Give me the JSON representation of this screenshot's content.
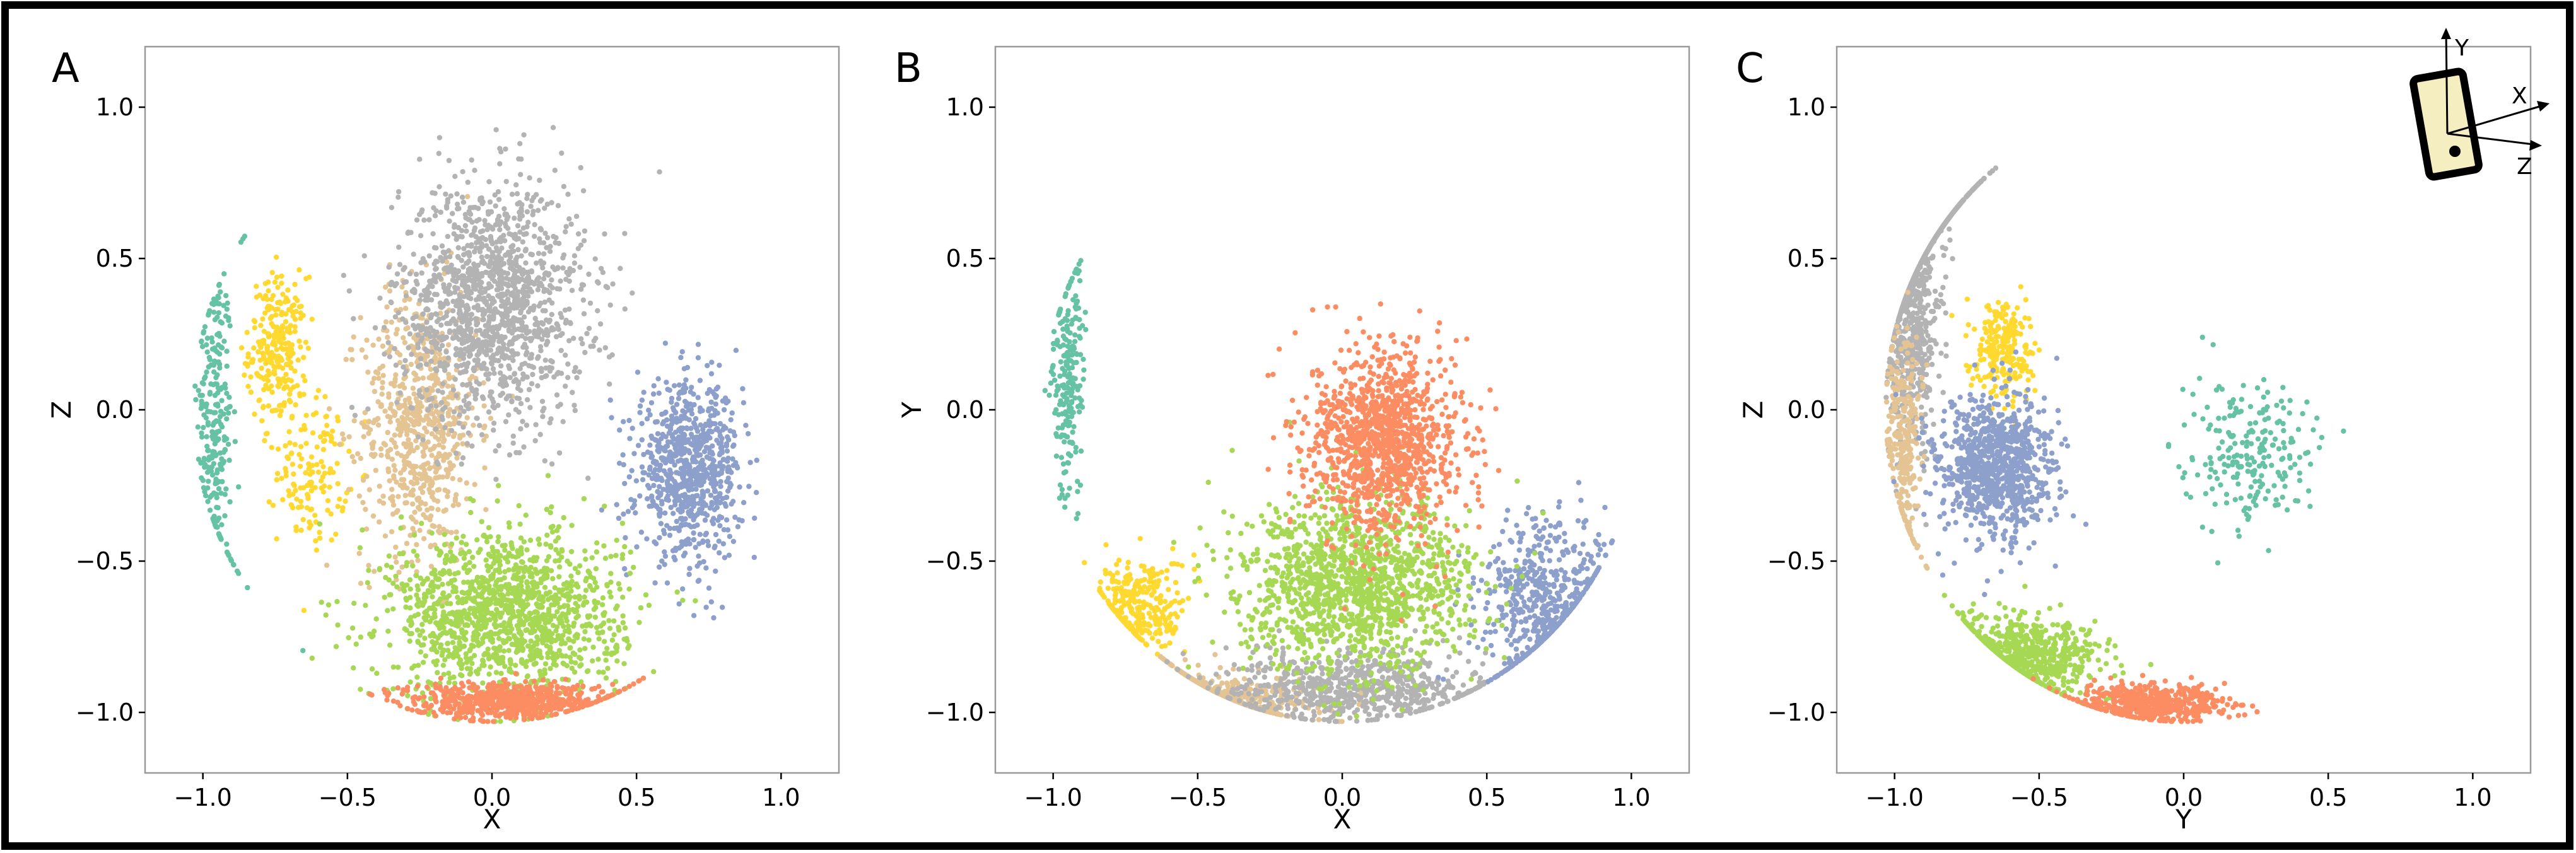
{
  "colors": {
    "teal": "#66c2a5",
    "orange": "#fc8d62",
    "blue": "#8da0cb",
    "green": "#a6d854",
    "yellow": "#ffd92f",
    "tan": "#e5c494",
    "gray": "#b3b3b3"
  },
  "inset": {
    "axis_labels": [
      "Y",
      "X",
      "Z"
    ],
    "icon": "phone-with-axes-icon"
  },
  "chart_data": [
    {
      "type": "scatter",
      "panel_label": "A",
      "xlabel": "X",
      "ylabel": "Z",
      "xlim": [
        -1.2,
        1.2
      ],
      "ylim": [
        -1.2,
        1.2
      ],
      "xticks": [
        -1.0,
        -0.5,
        0.0,
        0.5,
        1.0
      ],
      "yticks": [
        -1.0,
        -0.5,
        0.0,
        0.5,
        1.0
      ],
      "xtick_labels": [
        "−1.0",
        "−0.5",
        "0.0",
        "0.5",
        "1.0"
      ],
      "ytick_labels": [
        "−1.0",
        "−0.5",
        "0.0",
        "0.5",
        "1.0"
      ],
      "grid": false,
      "series": [
        {
          "color": "teal",
          "clusters": [
            {
              "center": [
                -0.96,
                -0.05
              ],
              "spread": [
                0.03,
                0.28
              ],
              "n": 260
            }
          ]
        },
        {
          "color": "yellow",
          "clusters": [
            {
              "center": [
                -0.74,
                0.2
              ],
              "spread": [
                0.05,
                0.12
              ],
              "n": 260
            },
            {
              "center": [
                -0.62,
                -0.2
              ],
              "spread": [
                0.06,
                0.12
              ],
              "n": 140
            }
          ]
        },
        {
          "color": "tan",
          "clusters": [
            {
              "center": [
                -0.25,
                -0.05
              ],
              "spread": [
                0.1,
                0.22
              ],
              "n": 700
            }
          ]
        },
        {
          "color": "gray",
          "clusters": [
            {
              "center": [
                0.0,
                0.35
              ],
              "spread": [
                0.16,
                0.2
              ],
              "n": 1400
            }
          ]
        },
        {
          "color": "blue",
          "clusters": [
            {
              "center": [
                0.68,
                -0.2
              ],
              "spread": [
                0.09,
                0.14
              ],
              "n": 800
            }
          ]
        },
        {
          "color": "green",
          "clusters": [
            {
              "center": [
                0.05,
                -0.68
              ],
              "spread": [
                0.2,
                0.14
              ],
              "n": 1400
            }
          ]
        },
        {
          "color": "orange",
          "clusters": [
            {
              "center": [
                0.05,
                -0.96
              ],
              "spread": [
                0.17,
                0.03
              ],
              "n": 650
            }
          ]
        }
      ]
    },
    {
      "type": "scatter",
      "panel_label": "B",
      "xlabel": "X",
      "ylabel": "Y",
      "xlim": [
        -1.2,
        1.2
      ],
      "ylim": [
        -1.2,
        1.2
      ],
      "xticks": [
        -1.0,
        -0.5,
        0.0,
        0.5,
        1.0
      ],
      "yticks": [
        -1.0,
        -0.5,
        0.0,
        0.5,
        1.0
      ],
      "xtick_labels": [
        "−1.0",
        "−0.5",
        "0.0",
        "0.5",
        "1.0"
      ],
      "ytick_labels": [
        "−1.0",
        "−0.5",
        "0.0",
        "0.5",
        "1.0"
      ],
      "grid": false,
      "series": [
        {
          "color": "teal",
          "clusters": [
            {
              "center": [
                -0.95,
                0.1
              ],
              "spread": [
                0.03,
                0.2
              ],
              "n": 220
            }
          ]
        },
        {
          "color": "yellow",
          "clusters": [
            {
              "center": [
                -0.7,
                -0.65
              ],
              "spread": [
                0.08,
                0.08
              ],
              "n": 300
            }
          ]
        },
        {
          "color": "tan",
          "clusters": [
            {
              "center": [
                -0.38,
                -0.96
              ],
              "spread": [
                0.14,
                0.04
              ],
              "n": 400
            }
          ]
        },
        {
          "color": "gray",
          "clusters": [
            {
              "center": [
                0.05,
                -0.92
              ],
              "spread": [
                0.22,
                0.06
              ],
              "n": 700
            }
          ]
        },
        {
          "color": "blue",
          "clusters": [
            {
              "center": [
                0.72,
                -0.65
              ],
              "spread": [
                0.12,
                0.15
              ],
              "n": 600
            }
          ]
        },
        {
          "color": "green",
          "clusters": [
            {
              "center": [
                0.05,
                -0.58
              ],
              "spread": [
                0.2,
                0.14
              ],
              "n": 1400
            }
          ]
        },
        {
          "color": "orange",
          "clusters": [
            {
              "center": [
                0.15,
                -0.1
              ],
              "spread": [
                0.13,
                0.15
              ],
              "n": 1200
            }
          ]
        }
      ]
    },
    {
      "type": "scatter",
      "panel_label": "C",
      "xlabel": "Y",
      "ylabel": "Z",
      "xlim": [
        -1.2,
        1.2
      ],
      "ylim": [
        -1.2,
        1.2
      ],
      "xticks": [
        -1.0,
        -0.5,
        0.0,
        0.5,
        1.0
      ],
      "yticks": [
        -1.0,
        -0.5,
        0.0,
        0.5,
        1.0
      ],
      "xtick_labels": [
        "−1.0",
        "−0.5",
        "0.0",
        "0.5",
        "1.0"
      ],
      "ytick_labels": [
        "−1.0",
        "−0.5",
        "0.0",
        "0.5",
        "1.0"
      ],
      "grid": false,
      "series": [
        {
          "color": "gray",
          "clusters": [
            {
              "center": [
                -0.95,
                0.4
              ],
              "spread": [
                0.05,
                0.25
              ],
              "n": 900
            }
          ]
        },
        {
          "color": "tan",
          "clusters": [
            {
              "center": [
                -0.97,
                -0.1
              ],
              "spread": [
                0.03,
                0.18
              ],
              "n": 300
            }
          ]
        },
        {
          "color": "yellow",
          "clusters": [
            {
              "center": [
                -0.62,
                0.2
              ],
              "spread": [
                0.05,
                0.08
              ],
              "n": 250
            }
          ]
        },
        {
          "color": "blue",
          "clusters": [
            {
              "center": [
                -0.65,
                -0.2
              ],
              "spread": [
                0.1,
                0.12
              ],
              "n": 900
            }
          ]
        },
        {
          "color": "green",
          "clusters": [
            {
              "center": [
                -0.55,
                -0.82
              ],
              "spread": [
                0.13,
                0.07
              ],
              "n": 700
            }
          ]
        },
        {
          "color": "orange",
          "clusters": [
            {
              "center": [
                -0.1,
                -0.97
              ],
              "spread": [
                0.13,
                0.03
              ],
              "n": 550
            }
          ]
        },
        {
          "color": "teal",
          "clusters": [
            {
              "center": [
                0.22,
                -0.15
              ],
              "spread": [
                0.12,
                0.12
              ],
              "n": 220
            }
          ]
        }
      ]
    }
  ]
}
